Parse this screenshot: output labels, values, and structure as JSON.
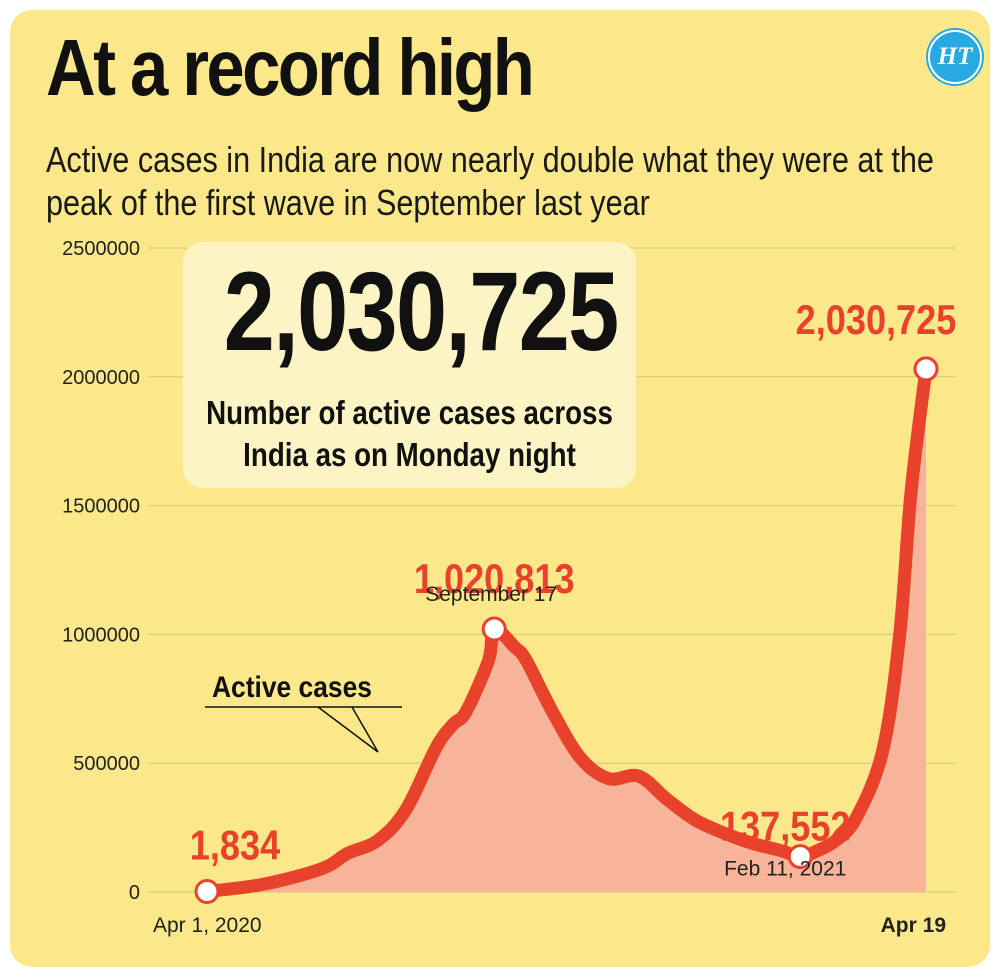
{
  "title": "At a record high",
  "subtitle": "Active cases in India are now nearly double what they were at the peak of the first wave in September last year",
  "logo_text": "HT",
  "callout": {
    "value": "2,030,725",
    "text": "Number of active cases across India as on Monday night"
  },
  "colors": {
    "background": "#fbe88a",
    "line": "#e8412c",
    "area": "#f7b49a",
    "callout_bg": "#fdf4c6",
    "accent": "#29a9e1"
  },
  "chart_data": {
    "type": "area",
    "title": "At a record high",
    "xlabel": "",
    "ylabel": "",
    "ylim": [
      0,
      2500000
    ],
    "yticks": [
      0,
      500000,
      1000000,
      1500000,
      2000000,
      2500000
    ],
    "ytick_labels": [
      "0",
      "500000",
      "1000000",
      "1500000",
      "2000000",
      "2500000"
    ],
    "x_start_label": "Apr 1, 2020",
    "x_end_label": "Apr 19",
    "series_label": "Active cases",
    "series": [
      {
        "name": "Active cases",
        "x": [
          0,
          30,
          61,
          75,
          91,
          106,
          122,
          131,
          138,
          150,
          153,
          164,
          170,
          184,
          199,
          214,
          230,
          245,
          260,
          275,
          290,
          306,
          316,
          325,
          335,
          346,
          360,
          369,
          375,
          383
        ],
        "values": [
          1834,
          30000,
          90000,
          150000,
          200000,
          320000,
          560000,
          650000,
          700000,
          900000,
          1020813,
          950000,
          900000,
          700000,
          520000,
          440000,
          450000,
          360000,
          280000,
          230000,
          190000,
          160000,
          137552,
          160000,
          200000,
          290000,
          550000,
          1000000,
          1550000,
          2030725
        ]
      }
    ],
    "annotations": [
      {
        "x": 0,
        "value": 1834,
        "label": "1,834",
        "date": ""
      },
      {
        "x": 153,
        "value": 1020813,
        "label": "1,020,813",
        "date": "September 17"
      },
      {
        "x": 316,
        "value": 137552,
        "label": "137,552",
        "date": "Feb 11, 2021"
      },
      {
        "x": 383,
        "value": 2030725,
        "label": "2,030,725",
        "date": ""
      }
    ]
  }
}
